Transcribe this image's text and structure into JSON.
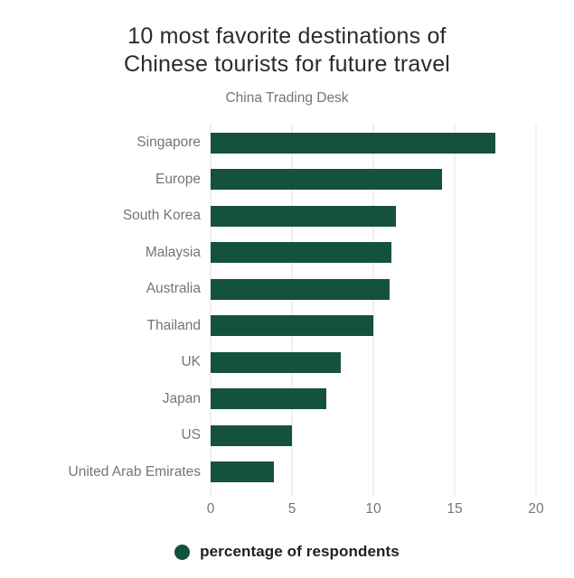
{
  "title": {
    "line1": "10 most favorite destinations of",
    "line2": "Chinese tourists for future travel"
  },
  "subtitle": "China Trading Desk",
  "legend": {
    "label": "percentage of respondents",
    "marker": "filled-circle"
  },
  "colors": {
    "bar": "#14513e",
    "grid": "#dfe2e5",
    "axis_text": "#757575",
    "title_text": "#2b2b2b",
    "legend_text": "#212121",
    "background": "#ffffff"
  },
  "axis": {
    "min": 0,
    "max": 20,
    "ticks": [
      0,
      5,
      10,
      15,
      20
    ]
  },
  "chart_data": {
    "type": "bar",
    "orientation": "horizontal",
    "title": "10 most favorite destinations of Chinese tourists for future travel",
    "subtitle": "China Trading Desk",
    "categories": [
      "Singapore",
      "Europe",
      "South Korea",
      "Malaysia",
      "Australia",
      "Thailand",
      "UK",
      "Japan",
      "US",
      "United Arab Emirates"
    ],
    "values": [
      17.5,
      14.2,
      11.4,
      11.1,
      11.0,
      10.0,
      8.0,
      7.1,
      5.0,
      3.9
    ],
    "series_name": "percentage of respondents",
    "xlabel": "",
    "ylabel": "",
    "xlim": [
      0,
      20
    ],
    "xticks": [
      0,
      5,
      10,
      15,
      20
    ],
    "grid": "vertical-gridlines-only",
    "legend_position": "bottom-center",
    "data_labels": false
  }
}
